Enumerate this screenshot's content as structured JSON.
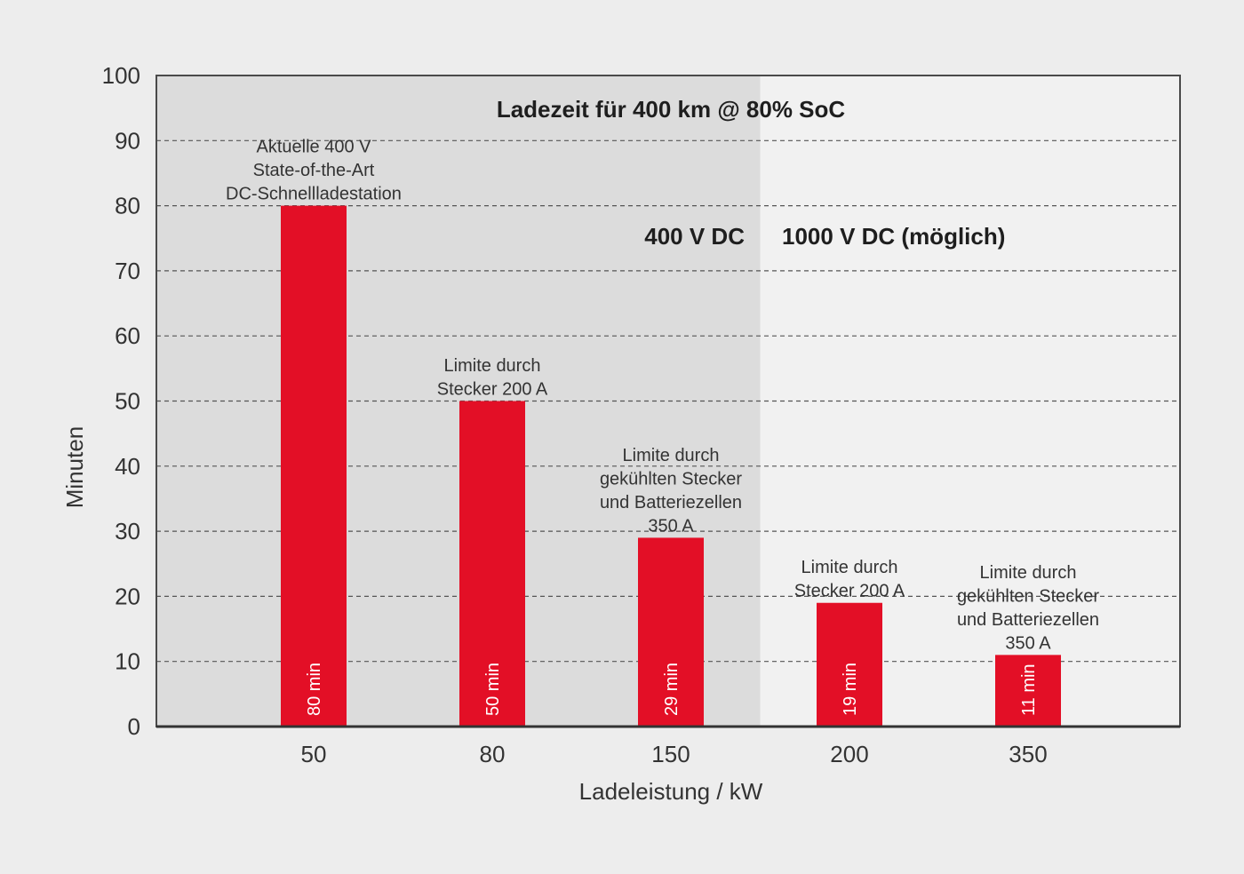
{
  "chart_data": {
    "type": "bar",
    "title": "Ladezeit für 400 km @ 80% SoC",
    "xlabel": "Ladeleistung / kW",
    "ylabel": "Minuten",
    "ylim": [
      0,
      100
    ],
    "yticks": [
      0,
      10,
      20,
      30,
      40,
      50,
      60,
      70,
      80,
      90,
      100
    ],
    "grid": true,
    "categories": [
      "50",
      "80",
      "150",
      "200",
      "350"
    ],
    "values": [
      80,
      50,
      29,
      19,
      11
    ],
    "value_labels": [
      "80 min",
      "50 min",
      "29 min",
      "19 min",
      "11 min"
    ],
    "annotations": [
      [
        "Aktuelle 400 V",
        "State-of-the-Art",
        "DC-Schnellladestation"
      ],
      [
        "Limite durch",
        "Stecker 200 A"
      ],
      [
        "Limite durch",
        "gekühlten Stecker",
        "und Batteriezellen",
        "350 A"
      ],
      [
        "Limite durch",
        "Stecker 200 A"
      ],
      [
        "Limite durch",
        "gekühlten Stecker",
        "und Batteriezellen",
        "350 A"
      ]
    ],
    "regions": [
      {
        "label": "400 V DC",
        "from_category": "50",
        "to_category": "150",
        "color": "#dcdcdc"
      },
      {
        "label": "1000 V DC (möglich)",
        "from_category": "200",
        "to_category": "350",
        "color": "#f1f1f1"
      }
    ],
    "bar_color": "#e30f26"
  }
}
